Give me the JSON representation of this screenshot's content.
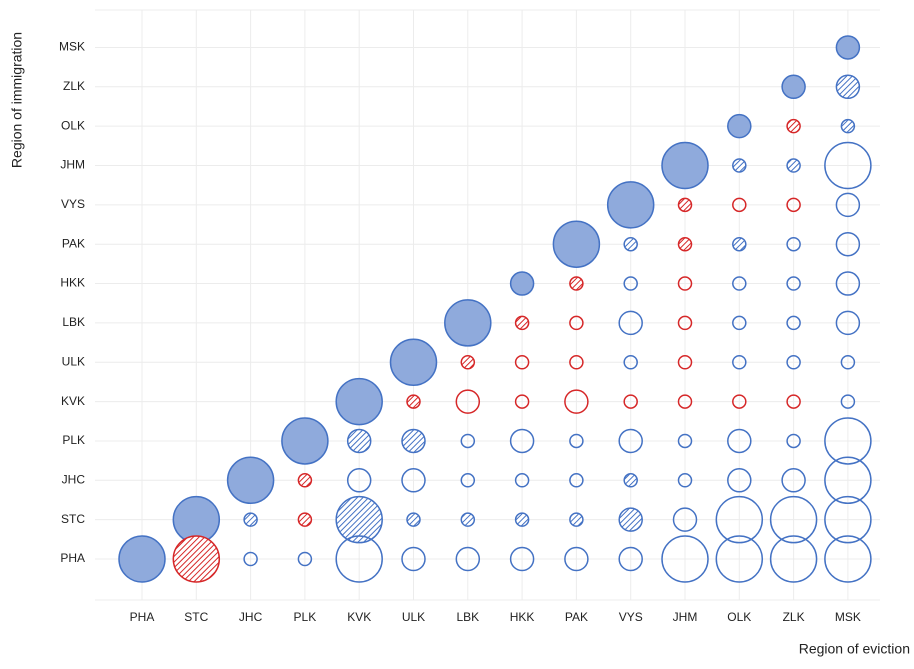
{
  "chart_data": {
    "type": "bubble",
    "x_label": "Region of eviction",
    "y_label": "Region of immigration",
    "categories": [
      "PHA",
      "STC",
      "JHC",
      "PLK",
      "KVK",
      "ULK",
      "LBK",
      "HKK",
      "PAK",
      "VYS",
      "JHM",
      "OLK",
      "ZLK",
      "MSK"
    ],
    "grid": true,
    "series": [
      {
        "color": "#4472c4",
        "fill_color": "#8faadc",
        "style": "solid",
        "x": [
          "PHA",
          "STC",
          "JHC",
          "PLK",
          "KVK",
          "ULK",
          "LBK",
          "HKK",
          "PAK",
          "VYS",
          "JHM",
          "OLK",
          "ZLK",
          "MSK"
        ],
        "y": [
          "PHA",
          "STC",
          "JHC",
          "PLK",
          "KVK",
          "ULK",
          "LBK",
          "HKK",
          "PAK",
          "VYS",
          "JHM",
          "OLK",
          "ZLK",
          "MSK"
        ],
        "sizes": [
          47,
          47,
          47,
          47,
          47,
          47,
          47,
          24,
          47,
          47,
          47,
          24,
          24,
          24
        ]
      },
      {
        "color": "#4472c4",
        "style": "hatch",
        "x": [
          "JHC",
          "KVK",
          "ULK",
          "LBK",
          "HKK",
          "PAK",
          "VYS",
          "VYS",
          "KVK",
          "ULK",
          "VYS",
          "OLK",
          "OLK",
          "ZLK",
          "MSK",
          "MSK"
        ],
        "y": [
          "STC",
          "STC",
          "STC",
          "STC",
          "STC",
          "STC",
          "STC",
          "JHC",
          "PLK",
          "PLK",
          "PAK",
          "PAK",
          "JHM",
          "JHM",
          "OLK",
          "ZLK"
        ],
        "sizes": [
          14,
          47,
          14,
          14,
          14,
          14,
          24,
          14,
          24,
          24,
          14,
          14,
          14,
          14,
          14,
          24
        ]
      },
      {
        "color": "#d62728",
        "style": "hatch",
        "x": [
          "STC",
          "PLK",
          "PLK",
          "ULK",
          "LBK",
          "HKK",
          "PAK",
          "JHM",
          "JHM",
          "ZLK"
        ],
        "y": [
          "PHA",
          "STC",
          "JHC",
          "KVK",
          "ULK",
          "LBK",
          "HKK",
          "PAK",
          "VYS",
          "OLK"
        ],
        "sizes": [
          47,
          14,
          14,
          14,
          14,
          14,
          14,
          14,
          14,
          14
        ]
      },
      {
        "color": "#4472c4",
        "style": "outline",
        "x": [
          "JHC",
          "PLK",
          "KVK",
          "ULK",
          "LBK",
          "HKK",
          "PAK",
          "VYS",
          "JHM",
          "OLK",
          "ZLK",
          "MSK",
          "JHM",
          "OLK",
          "ZLK",
          "MSK",
          "KVK",
          "ULK",
          "LBK",
          "HKK",
          "PAK",
          "JHM",
          "OLK",
          "ZLK",
          "MSK",
          "LBK",
          "HKK",
          "PAK",
          "VYS",
          "JHM",
          "OLK",
          "ZLK",
          "MSK",
          "MSK",
          "VYS",
          "OLK",
          "ZLK",
          "MSK",
          "VYS",
          "OLK",
          "ZLK",
          "MSK",
          "VYS",
          "OLK",
          "ZLK",
          "MSK",
          "ZLK",
          "MSK",
          "MSK",
          "MSK"
        ],
        "y": [
          "PHA",
          "PHA",
          "PHA",
          "PHA",
          "PHA",
          "PHA",
          "PHA",
          "PHA",
          "PHA",
          "PHA",
          "PHA",
          "PHA",
          "STC",
          "STC",
          "STC",
          "STC",
          "JHC",
          "JHC",
          "JHC",
          "JHC",
          "JHC",
          "JHC",
          "JHC",
          "JHC",
          "JHC",
          "PLK",
          "PLK",
          "PLK",
          "PLK",
          "PLK",
          "PLK",
          "PLK",
          "PLK",
          "KVK",
          "ULK",
          "ULK",
          "ULK",
          "ULK",
          "LBK",
          "LBK",
          "LBK",
          "LBK",
          "HKK",
          "HKK",
          "HKK",
          "HKK",
          "PAK",
          "PAK",
          "VYS",
          "JHM"
        ],
        "sizes": [
          14,
          14,
          47,
          24,
          24,
          24,
          24,
          24,
          47,
          47,
          47,
          47,
          24,
          47,
          47,
          47,
          24,
          24,
          14,
          14,
          14,
          14,
          24,
          24,
          47,
          14,
          24,
          14,
          24,
          14,
          24,
          14,
          47,
          14,
          14,
          14,
          14,
          14,
          24,
          14,
          14,
          24,
          14,
          14,
          14,
          24,
          14,
          24,
          24,
          47
        ]
      },
      {
        "color": "#d62728",
        "style": "outline",
        "x": [
          "LBK",
          "HKK",
          "PAK",
          "VYS",
          "JHM",
          "OLK",
          "ZLK",
          "HKK",
          "PAK",
          "JHM",
          "PAK",
          "JHM",
          "JHM",
          "OLK",
          "ZLK"
        ],
        "y": [
          "KVK",
          "KVK",
          "KVK",
          "KVK",
          "KVK",
          "KVK",
          "KVK",
          "ULK",
          "ULK",
          "ULK",
          "LBK",
          "LBK",
          "HKK",
          "VYS",
          "VYS"
        ],
        "sizes": [
          24,
          14,
          24,
          14,
          14,
          14,
          14,
          14,
          14,
          14,
          14,
          14,
          14,
          14,
          14
        ]
      }
    ]
  }
}
